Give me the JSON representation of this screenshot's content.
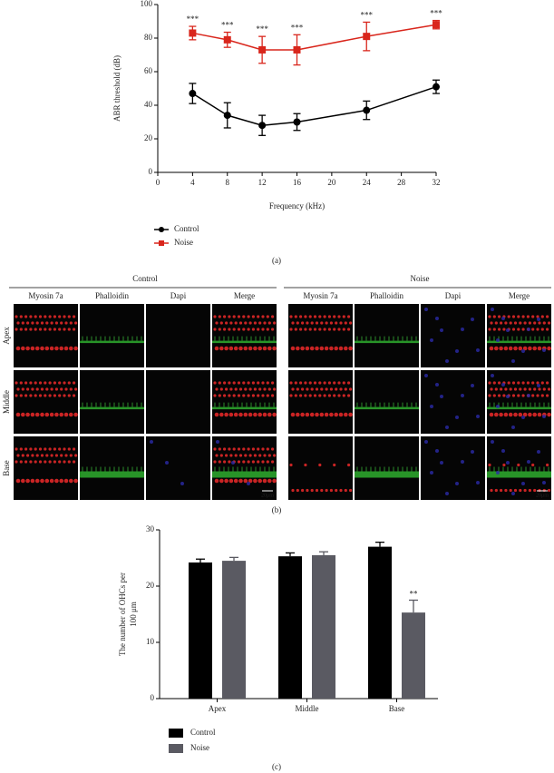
{
  "chart_data": [
    {
      "type": "line",
      "y_label": "ABR threshold (dB)",
      "x_label": "Frequency (kHz)",
      "x": [
        4,
        8,
        12,
        16,
        24,
        32
      ],
      "xlim": [
        0,
        32
      ],
      "xticks": [
        0,
        4,
        8,
        12,
        16,
        20,
        24,
        28,
        32
      ],
      "ylim": [
        0,
        100
      ],
      "yticks": [
        0,
        20,
        40,
        60,
        80,
        100
      ],
      "series": [
        {
          "name": "Control",
          "color": "#000000",
          "marker": "circle",
          "values": [
            47,
            34,
            28,
            30,
            37,
            51
          ],
          "errors": [
            6,
            7.5,
            6,
            5,
            5.5,
            4
          ]
        },
        {
          "name": "Noise",
          "color": "#d9261c",
          "marker": "square",
          "values": [
            83,
            79,
            73,
            73,
            81,
            88
          ],
          "errors": [
            4,
            4.5,
            8,
            9,
            8.5,
            2.5
          ],
          "annotations": [
            "***",
            "***",
            "***",
            "***",
            "***",
            "***"
          ]
        }
      ],
      "panel_label": "(a)"
    },
    {
      "type": "bar",
      "y_label": [
        "The number of OHCs per",
        "100 μm"
      ],
      "categories": [
        "Apex",
        "Middle",
        "Base"
      ],
      "ylim": [
        0,
        30
      ],
      "yticks": [
        0,
        10,
        20,
        30
      ],
      "series": [
        {
          "name": "Control",
          "color": "#000000",
          "values": [
            24.2,
            25.3,
            27
          ],
          "errors": [
            0.6,
            0.6,
            0.8
          ]
        },
        {
          "name": "Noise",
          "color": "#5a5a62",
          "values": [
            24.5,
            25.5,
            15.3
          ],
          "errors": [
            0.6,
            0.6,
            2.2
          ],
          "annotations": [
            null,
            null,
            "**"
          ]
        }
      ],
      "panel_label": "(c)"
    }
  ],
  "figure_b": {
    "groups": [
      "Control",
      "Noise"
    ],
    "channels": [
      "Myosin 7a",
      "Phalloidin",
      "Dapi",
      "Merge"
    ],
    "rows": [
      "Apex",
      "Middle",
      "Base"
    ],
    "scale_bar": "20μm",
    "panel_label": "(b)"
  }
}
